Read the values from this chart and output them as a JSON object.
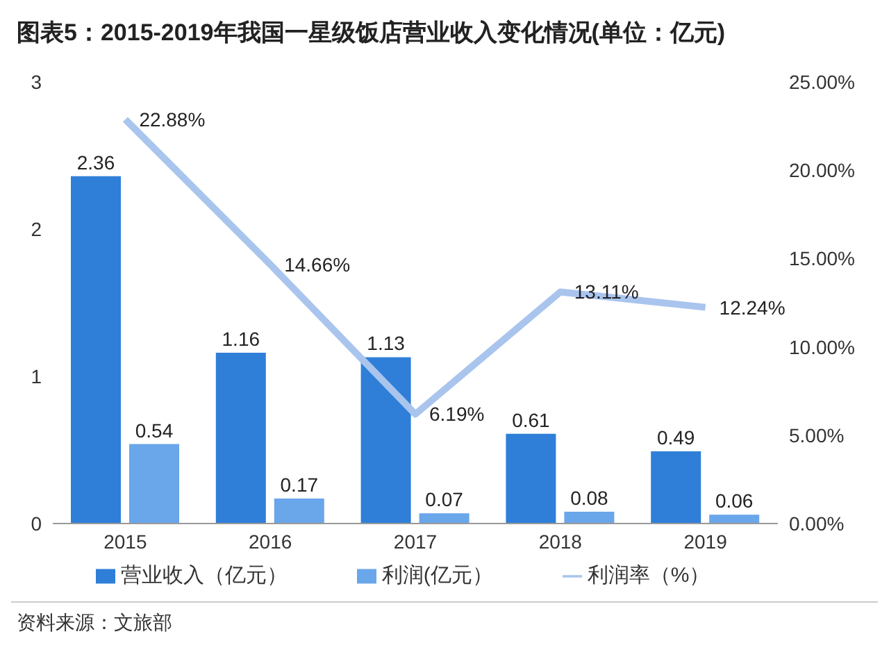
{
  "chart_data": {
    "type": "bar",
    "title": "图表5：2015-2019年我国一星级饭店营业收入变化情况(单位：亿元)",
    "categories": [
      "2015",
      "2016",
      "2017",
      "2018",
      "2019"
    ],
    "series": [
      {
        "name": "营业收入（亿元）",
        "color": "#2f7fd8",
        "values": [
          2.36,
          1.16,
          1.13,
          0.61,
          0.49
        ],
        "value_labels": [
          "2.36",
          "1.16",
          "1.13",
          "0.61",
          "0.49"
        ]
      },
      {
        "name": "利润(亿元）",
        "color": "#6aa6ea",
        "values": [
          0.54,
          0.17,
          0.07,
          0.08,
          0.06
        ],
        "value_labels": [
          "0.54",
          "0.17",
          "0.07",
          "0.08",
          "0.06"
        ]
      },
      {
        "name": "利润率（%）",
        "type": "line",
        "axis": "y2",
        "color": "#a9c5ee",
        "values": [
          22.88,
          14.66,
          6.19,
          13.11,
          12.24
        ],
        "value_labels": [
          "22.88%",
          "14.66%",
          "6.19%",
          "13.11%",
          "12.24%"
        ]
      }
    ],
    "ylim": [
      0,
      3
    ],
    "yticks": [
      0,
      1,
      2,
      3
    ],
    "y2lim": [
      0,
      25
    ],
    "y2ticks": [
      {
        "value": 0,
        "label": "0.00%"
      },
      {
        "value": 5,
        "label": "5.00%"
      },
      {
        "value": 10,
        "label": "10.00%"
      },
      {
        "value": 15,
        "label": "15.00%"
      },
      {
        "value": 20,
        "label": "20.00%"
      },
      {
        "value": 25,
        "label": "25.00%"
      }
    ],
    "legend": "bottom",
    "marker": "none",
    "annotations": [
      "资料来源：文旅部"
    ]
  }
}
